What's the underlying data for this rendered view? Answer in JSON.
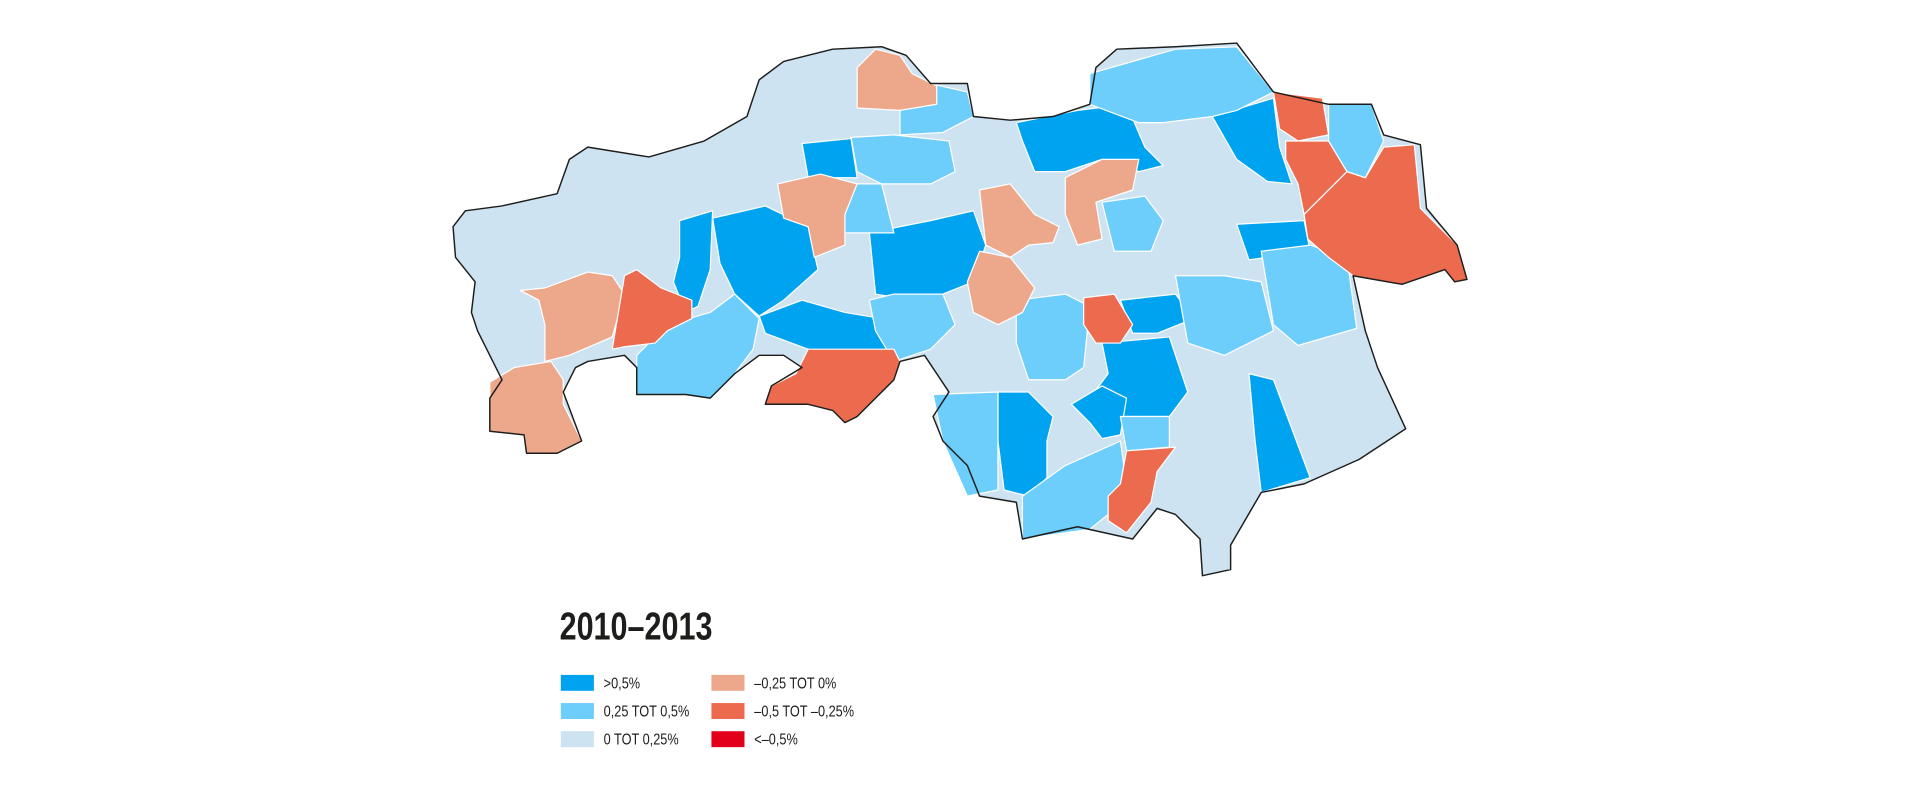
{
  "title": "2010–2013",
  "legend": [
    {
      "label": ">0,5%",
      "color": "#00a3f0"
    },
    {
      "label": "0,25 TOT 0,5%",
      "color": "#6dcdfb"
    },
    {
      "label": "0 TOT 0,25%",
      "color": "#cde3f2"
    },
    {
      "label": "–0,25 TOT 0%",
      "color": "#eda88b"
    },
    {
      "label": "–0,5 TOT –0,25%",
      "color": "#ec6a4e"
    },
    {
      "label": "<–0,5%",
      "color": "#e2001a"
    }
  ]
}
